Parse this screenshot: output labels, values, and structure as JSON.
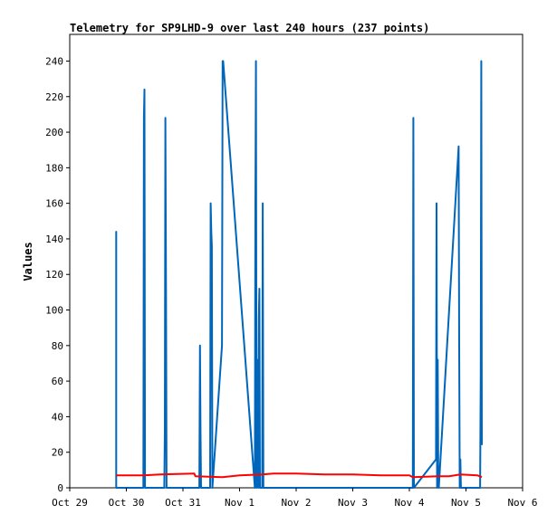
{
  "chart_data": {
    "type": "line",
    "title": "Telemetry for SP9LHD-9 over last 240 hours (237 points)",
    "xlabel": "",
    "ylabel": "Values",
    "xlim": [
      "Oct 29",
      "Nov 6"
    ],
    "ylim": [
      0,
      255
    ],
    "x_ticks": [
      "Oct 29",
      "Oct 30",
      "Oct 31",
      "Nov 1",
      "Nov 2",
      "Nov 3",
      "Nov 4",
      "Nov 5",
      "Nov 6"
    ],
    "y_ticks": [
      0,
      20,
      40,
      60,
      80,
      100,
      120,
      140,
      160,
      180,
      200,
      220,
      240
    ],
    "grid": false,
    "legend": "none",
    "x_unit": "days since Oct 29 00:00",
    "series": [
      {
        "color": "#0066bb",
        "x": [
          0.82,
          0.82,
          0.82,
          1.3,
          1.31,
          1.32,
          1.33,
          1.67,
          1.68,
          1.69,
          1.7,
          1.71,
          2.29,
          2.3,
          2.31,
          2.32,
          2.48,
          2.49,
          2.5,
          2.51,
          2.52,
          2.69,
          2.7,
          2.71,
          3.27,
          3.28,
          3.29,
          3.3,
          3.31,
          3.33,
          3.34,
          3.35,
          3.36,
          3.4,
          3.41,
          3.42,
          3.43,
          3.45,
          3.46,
          3.47,
          6.06,
          6.07,
          6.08,
          6.47,
          6.48,
          6.49,
          6.5,
          6.51,
          6.52,
          6.87,
          6.88,
          6.89,
          6.9,
          6.91,
          7.25,
          7.26,
          7.27,
          7.28
        ],
        "y": [
          0,
          144,
          0,
          0,
          208,
          224,
          0,
          0,
          32,
          208,
          112,
          0,
          0,
          80,
          32,
          0,
          0,
          160,
          144,
          136,
          0,
          80,
          240,
          240,
          0,
          160,
          240,
          0,
          72,
          0,
          96,
          112,
          0,
          0,
          160,
          0,
          0,
          0,
          0,
          0,
          0,
          208,
          0,
          16,
          160,
          0,
          72,
          8,
          0,
          192,
          80,
          0,
          16,
          0,
          0,
          64,
          240,
          24
        ]
      },
      {
        "color": "#ff0000",
        "x": [
          0.82,
          1.3,
          1.6,
          2.2,
          2.22,
          2.7,
          3.0,
          3.4,
          3.6,
          4.0,
          4.5,
          5.0,
          5.5,
          6.0,
          6.06,
          6.5,
          6.7,
          6.9,
          7.2,
          7.28
        ],
        "y": [
          7,
          7,
          7.5,
          8,
          6.5,
          6,
          7,
          7.5,
          8,
          8,
          7.5,
          7.5,
          7,
          7,
          6,
          6.5,
          6.5,
          7.5,
          7,
          6
        ]
      }
    ]
  }
}
